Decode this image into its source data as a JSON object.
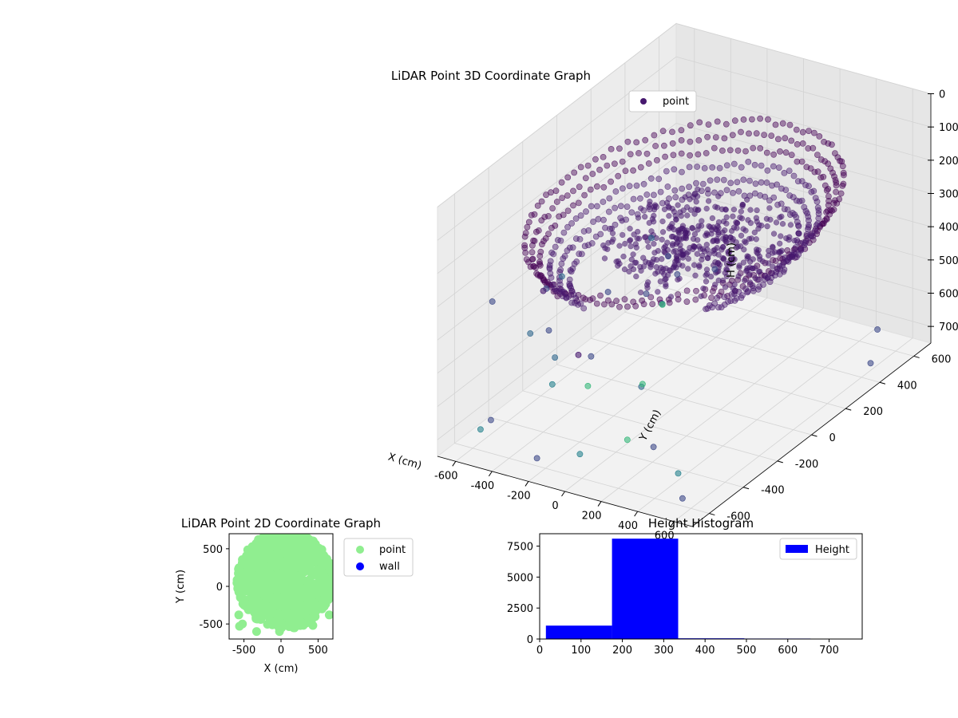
{
  "figure": {
    "background": "#ffffff"
  },
  "chart_data": [
    {
      "type": "scatter",
      "projection": "3d",
      "title": "LiDAR Point 3D Coordinate Graph",
      "xlabel": "X (cm)",
      "ylabel": "Y (cm)",
      "zlabel": "H (cm)",
      "xlim": [
        -700,
        700
      ],
      "ylim": [
        -700,
        700
      ],
      "zlim": [
        750,
        0
      ],
      "z_axis_inverted": true,
      "x_ticks": [
        "-600",
        "-400",
        "-200",
        "0",
        "200",
        "400",
        "600"
      ],
      "y_ticks": [
        "-600",
        "-400",
        "-200",
        "0",
        "200",
        "400",
        "600"
      ],
      "z_ticks": [
        "0",
        "100",
        "200",
        "300",
        "400",
        "500",
        "600",
        "700"
      ],
      "grid": true,
      "legend": {
        "placement": "top-right",
        "entries": [
          "point"
        ]
      },
      "colormap": "viridis (colored by height)",
      "marker_color": "#46186e",
      "series": [
        {
          "name": "point",
          "description_values": "ring-shaped wall returns at radius ~450-650 cm, height ~150-330 cm; dense interior cluster near origin; sparse outliers",
          "rings": [
            {
              "radius": 640,
              "z": 180
            },
            {
              "radius": 610,
              "z": 210
            },
            {
              "radius": 580,
              "z": 240
            },
            {
              "radius": 540,
              "z": 270
            },
            {
              "radius": 500,
              "z": 300
            },
            {
              "radius": 460,
              "z": 320
            }
          ],
          "outliers": [
            [
              -650,
              -100,
              600
            ],
            [
              -700,
              300,
              650
            ],
            [
              -600,
              600,
              700
            ],
            [
              -500,
              -600,
              650
            ],
            [
              600,
              -650,
              700
            ],
            [
              650,
              400,
              700
            ],
            [
              300,
              -500,
              650
            ],
            [
              -300,
              500,
              600
            ],
            [
              500,
              600,
              700
            ],
            [
              -200,
              -650,
              700
            ]
          ]
        }
      ]
    },
    {
      "type": "scatter",
      "title": "LiDAR Point 2D Coordinate Graph",
      "xlabel": "X (cm)",
      "ylabel": "Y (cm)",
      "xlim": [
        -700,
        700
      ],
      "ylim": [
        -700,
        700
      ],
      "x_ticks": [
        -500,
        0,
        500
      ],
      "y_ticks": [
        -500,
        0,
        500
      ],
      "legend": {
        "placement": "outside-right",
        "entries": [
          "point",
          "wall"
        ]
      },
      "series": [
        {
          "name": "point",
          "color": "#90ee90",
          "description_values": "filled disc of points radius ~650 cm centered near (50, 80); sparse points near lower-left",
          "center": [
            50,
            80
          ],
          "radius": 650,
          "outliers": [
            [
              -570,
              -380
            ],
            [
              -520,
              -500
            ],
            [
              -560,
              -530
            ],
            [
              -330,
              -600
            ],
            [
              -20,
              -600
            ],
            [
              430,
              -520
            ],
            [
              650,
              -380
            ]
          ]
        },
        {
          "name": "wall",
          "color": "#0000ff",
          "points": []
        }
      ]
    },
    {
      "type": "bar",
      "subtype": "histogram",
      "title": "Height Histogram",
      "xlabel": "",
      "ylabel": "",
      "xlim": [
        0,
        780
      ],
      "ylim": [
        0,
        8500
      ],
      "x_ticks": [
        0,
        100,
        200,
        300,
        400,
        500,
        600,
        700
      ],
      "y_ticks": [
        0,
        2500,
        5000,
        7500
      ],
      "y_tick_labels": [
        "0",
        "2500",
        "5000",
        "7500"
      ],
      "legend": {
        "placement": "top-right",
        "entries": [
          "Height"
        ]
      },
      "series": [
        {
          "name": "Height",
          "color": "#0000ff",
          "bins": [
            {
              "x0": 15,
              "x1": 175,
              "count": 1080
            },
            {
              "x0": 175,
              "x1": 335,
              "count": 8100
            },
            {
              "x0": 335,
              "x1": 495,
              "count": 60
            },
            {
              "x0": 495,
              "x1": 655,
              "count": 40
            },
            {
              "x0": 655,
              "x1": 815,
              "count": 30
            }
          ]
        }
      ]
    }
  ]
}
